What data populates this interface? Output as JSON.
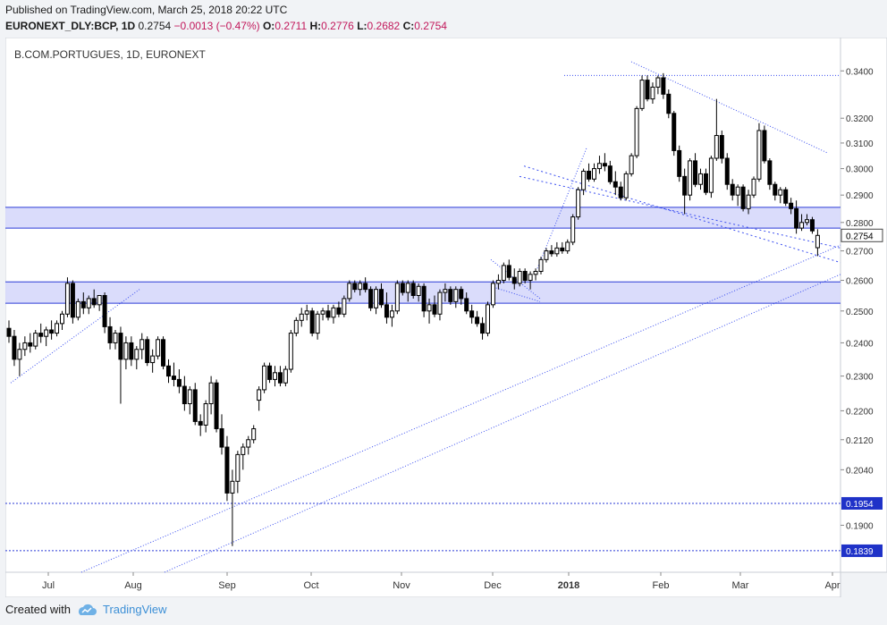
{
  "header": {
    "published": "Published on TradingView.com, March 25, 2018 20:22 UTC",
    "symbol": "EURONEXT_DLY:BCP, 1D",
    "last": "0.2754",
    "change": "−0.0013 (−0.47%)",
    "o_label": "O:",
    "o_value": "0.2711",
    "h_label": "H:",
    "h_value": "0.2776",
    "l_label": "L:",
    "l_value": "0.2682",
    "c_label": "C:",
    "c_value": "0.2754"
  },
  "footer": {
    "created_with": "Created with",
    "brand": "TradingView",
    "logo_icon": "tradingview-cloud-icon"
  },
  "colors": {
    "band_fill": "#d6d8fb",
    "band_border": "#2a3ad6",
    "trendline": "#3b4ff0",
    "candle": "#000000",
    "price_label_bg": "#1f32c8"
  },
  "chart_data": {
    "type": "candlestick",
    "title": "B.COM.PORTUGUES, 1D, EURONEXT",
    "y_axis_ticks": [
      "0.3400",
      "0.3200",
      "0.3100",
      "0.3000",
      "0.2900",
      "0.2800",
      "0.2700",
      "0.2600",
      "0.2500",
      "0.2400",
      "0.2300",
      "0.2200",
      "0.2120",
      "0.2040",
      "0.1900"
    ],
    "y_scale": "log",
    "ylim": [
      0.182,
      0.346
    ],
    "x_axis_labels": [
      "Jul",
      "Aug",
      "Sep",
      "Oct",
      "Nov",
      "Dec",
      "2018",
      "Feb",
      "Mar",
      "Apr"
    ],
    "last_price_label": "0.2754",
    "horizontal_levels": [
      {
        "value": 0.1954,
        "label": "0.1954"
      },
      {
        "value": 0.1839,
        "label": "0.1839"
      }
    ],
    "zones": [
      {
        "top": 0.2855,
        "bottom": 0.278
      },
      {
        "top": 0.2595,
        "bottom": 0.2525
      }
    ],
    "candles": [
      [
        0.2445,
        0.247,
        0.24,
        0.242
      ],
      [
        0.242,
        0.244,
        0.233,
        0.235
      ],
      [
        0.235,
        0.24,
        0.23,
        0.238
      ],
      [
        0.238,
        0.242,
        0.236,
        0.24
      ],
      [
        0.24,
        0.243,
        0.237,
        0.239
      ],
      [
        0.239,
        0.244,
        0.238,
        0.243
      ],
      [
        0.243,
        0.246,
        0.24,
        0.242
      ],
      [
        0.242,
        0.245,
        0.239,
        0.244
      ],
      [
        0.244,
        0.247,
        0.241,
        0.243
      ],
      [
        0.243,
        0.247,
        0.242,
        0.246
      ],
      [
        0.246,
        0.25,
        0.244,
        0.249
      ],
      [
        0.249,
        0.261,
        0.248,
        0.259
      ],
      [
        0.259,
        0.26,
        0.246,
        0.248
      ],
      [
        0.248,
        0.254,
        0.247,
        0.253
      ],
      [
        0.253,
        0.256,
        0.249,
        0.251
      ],
      [
        0.251,
        0.255,
        0.249,
        0.254
      ],
      [
        0.254,
        0.257,
        0.251,
        0.252
      ],
      [
        0.252,
        0.255,
        0.25,
        0.255
      ],
      [
        0.255,
        0.256,
        0.243,
        0.245
      ],
      [
        0.245,
        0.248,
        0.238,
        0.24
      ],
      [
        0.24,
        0.244,
        0.238,
        0.243
      ],
      [
        0.243,
        0.245,
        0.222,
        0.235
      ],
      [
        0.235,
        0.242,
        0.232,
        0.24
      ],
      [
        0.24,
        0.242,
        0.233,
        0.235
      ],
      [
        0.235,
        0.239,
        0.232,
        0.238
      ],
      [
        0.238,
        0.243,
        0.235,
        0.241
      ],
      [
        0.241,
        0.242,
        0.233,
        0.234
      ],
      [
        0.234,
        0.238,
        0.231,
        0.236
      ],
      [
        0.236,
        0.242,
        0.235,
        0.241
      ],
      [
        0.241,
        0.242,
        0.232,
        0.233
      ],
      [
        0.233,
        0.235,
        0.228,
        0.23
      ],
      [
        0.23,
        0.234,
        0.227,
        0.229
      ],
      [
        0.229,
        0.232,
        0.225,
        0.227
      ],
      [
        0.227,
        0.23,
        0.22,
        0.222
      ],
      [
        0.222,
        0.227,
        0.219,
        0.226
      ],
      [
        0.226,
        0.228,
        0.216,
        0.217
      ],
      [
        0.217,
        0.219,
        0.213,
        0.216
      ],
      [
        0.216,
        0.223,
        0.214,
        0.222
      ],
      [
        0.222,
        0.23,
        0.219,
        0.228
      ],
      [
        0.228,
        0.229,
        0.214,
        0.215
      ],
      [
        0.215,
        0.219,
        0.208,
        0.21
      ],
      [
        0.21,
        0.213,
        0.196,
        0.198
      ],
      [
        0.198,
        0.204,
        0.185,
        0.201
      ],
      [
        0.201,
        0.209,
        0.198,
        0.208
      ],
      [
        0.208,
        0.211,
        0.204,
        0.21
      ],
      [
        0.21,
        0.213,
        0.208,
        0.212
      ],
      [
        0.212,
        0.216,
        0.211,
        0.215
      ],
      [
        0.223,
        0.227,
        0.22,
        0.226
      ],
      [
        0.226,
        0.234,
        0.225,
        0.233
      ],
      [
        0.233,
        0.234,
        0.228,
        0.229
      ],
      [
        0.229,
        0.233,
        0.227,
        0.231
      ],
      [
        0.231,
        0.233,
        0.227,
        0.228
      ],
      [
        0.228,
        0.233,
        0.227,
        0.232
      ],
      [
        0.232,
        0.244,
        0.231,
        0.243
      ],
      [
        0.243,
        0.248,
        0.242,
        0.247
      ],
      [
        0.247,
        0.251,
        0.245,
        0.249
      ],
      [
        0.249,
        0.252,
        0.247,
        0.25
      ],
      [
        0.25,
        0.251,
        0.242,
        0.243
      ],
      [
        0.243,
        0.25,
        0.241,
        0.249
      ],
      [
        0.249,
        0.251,
        0.247,
        0.25
      ],
      [
        0.25,
        0.252,
        0.247,
        0.248
      ],
      [
        0.248,
        0.252,
        0.246,
        0.251
      ],
      [
        0.251,
        0.253,
        0.248,
        0.249
      ],
      [
        0.249,
        0.255,
        0.248,
        0.254
      ],
      [
        0.254,
        0.26,
        0.253,
        0.259
      ],
      [
        0.259,
        0.26,
        0.256,
        0.257
      ],
      [
        0.257,
        0.26,
        0.255,
        0.259
      ],
      [
        0.259,
        0.261,
        0.256,
        0.257
      ],
      [
        0.257,
        0.258,
        0.25,
        0.251
      ],
      [
        0.251,
        0.258,
        0.249,
        0.257
      ],
      [
        0.257,
        0.259,
        0.251,
        0.252
      ],
      [
        0.252,
        0.256,
        0.246,
        0.248
      ],
      [
        0.248,
        0.252,
        0.245,
        0.25
      ],
      [
        0.25,
        0.26,
        0.249,
        0.259
      ],
      [
        0.259,
        0.26,
        0.255,
        0.256
      ],
      [
        0.256,
        0.26,
        0.253,
        0.259
      ],
      [
        0.259,
        0.26,
        0.254,
        0.255
      ],
      [
        0.255,
        0.259,
        0.253,
        0.258
      ],
      [
        0.258,
        0.259,
        0.248,
        0.25
      ],
      [
        0.25,
        0.254,
        0.246,
        0.252
      ],
      [
        0.252,
        0.255,
        0.248,
        0.249
      ],
      [
        0.249,
        0.257,
        0.247,
        0.256
      ],
      [
        0.256,
        0.259,
        0.253,
        0.257
      ],
      [
        0.257,
        0.258,
        0.252,
        0.253
      ],
      [
        0.253,
        0.258,
        0.251,
        0.257
      ],
      [
        0.257,
        0.258,
        0.252,
        0.254
      ],
      [
        0.254,
        0.256,
        0.249,
        0.25
      ],
      [
        0.25,
        0.252,
        0.246,
        0.248
      ],
      [
        0.248,
        0.25,
        0.245,
        0.246
      ],
      [
        0.246,
        0.248,
        0.241,
        0.243
      ],
      [
        0.243,
        0.253,
        0.242,
        0.252
      ],
      [
        0.252,
        0.26,
        0.251,
        0.259
      ],
      [
        0.259,
        0.262,
        0.257,
        0.26
      ],
      [
        0.26,
        0.266,
        0.259,
        0.265
      ],
      [
        0.265,
        0.267,
        0.26,
        0.261
      ],
      [
        0.261,
        0.264,
        0.257,
        0.259
      ],
      [
        0.259,
        0.264,
        0.258,
        0.263
      ],
      [
        0.263,
        0.264,
        0.259,
        0.26
      ],
      [
        0.26,
        0.263,
        0.257,
        0.262
      ],
      [
        0.262,
        0.264,
        0.26,
        0.263
      ],
      [
        0.263,
        0.268,
        0.262,
        0.267
      ],
      [
        0.267,
        0.271,
        0.266,
        0.27
      ],
      [
        0.27,
        0.272,
        0.268,
        0.269
      ],
      [
        0.269,
        0.273,
        0.268,
        0.271
      ],
      [
        0.271,
        0.273,
        0.269,
        0.27
      ],
      [
        0.27,
        0.274,
        0.269,
        0.273
      ],
      [
        0.273,
        0.283,
        0.272,
        0.282
      ],
      [
        0.282,
        0.293,
        0.281,
        0.292
      ],
      [
        0.292,
        0.3,
        0.29,
        0.299
      ],
      [
        0.299,
        0.302,
        0.295,
        0.296
      ],
      [
        0.296,
        0.302,
        0.295,
        0.3
      ],
      [
        0.3,
        0.305,
        0.298,
        0.302
      ],
      [
        0.302,
        0.306,
        0.299,
        0.301
      ],
      [
        0.301,
        0.303,
        0.294,
        0.295
      ],
      [
        0.295,
        0.299,
        0.29,
        0.293
      ],
      [
        0.293,
        0.295,
        0.288,
        0.289
      ],
      [
        0.289,
        0.299,
        0.288,
        0.298
      ],
      [
        0.298,
        0.306,
        0.297,
        0.305
      ],
      [
        0.305,
        0.325,
        0.304,
        0.324
      ],
      [
        0.324,
        0.338,
        0.323,
        0.336
      ],
      [
        0.336,
        0.338,
        0.327,
        0.328
      ],
      [
        0.328,
        0.335,
        0.326,
        0.333
      ],
      [
        0.333,
        0.338,
        0.33,
        0.337
      ],
      [
        0.337,
        0.339,
        0.328,
        0.33
      ],
      [
        0.33,
        0.332,
        0.32,
        0.322
      ],
      [
        0.322,
        0.323,
        0.305,
        0.307
      ],
      [
        0.307,
        0.309,
        0.295,
        0.297
      ],
      [
        0.297,
        0.3,
        0.283,
        0.29
      ],
      [
        0.29,
        0.304,
        0.288,
        0.303
      ],
      [
        0.303,
        0.306,
        0.293,
        0.294
      ],
      [
        0.294,
        0.3,
        0.292,
        0.298
      ],
      [
        0.298,
        0.3,
        0.29,
        0.291
      ],
      [
        0.291,
        0.305,
        0.289,
        0.304
      ],
      [
        0.304,
        0.328,
        0.303,
        0.313
      ],
      [
        0.313,
        0.315,
        0.302,
        0.304
      ],
      [
        0.304,
        0.306,
        0.292,
        0.294
      ],
      [
        0.294,
        0.296,
        0.288,
        0.29
      ],
      [
        0.29,
        0.294,
        0.286,
        0.293
      ],
      [
        0.293,
        0.294,
        0.284,
        0.285
      ],
      [
        0.285,
        0.292,
        0.283,
        0.29
      ],
      [
        0.29,
        0.297,
        0.289,
        0.296
      ],
      [
        0.296,
        0.318,
        0.295,
        0.315
      ],
      [
        0.315,
        0.317,
        0.302,
        0.303
      ],
      [
        0.303,
        0.304,
        0.292,
        0.294
      ],
      [
        0.294,
        0.295,
        0.288,
        0.29
      ],
      [
        0.29,
        0.293,
        0.287,
        0.292
      ],
      [
        0.292,
        0.293,
        0.286,
        0.287
      ],
      [
        0.287,
        0.289,
        0.283,
        0.285
      ],
      [
        0.285,
        0.288,
        0.276,
        0.278
      ],
      [
        0.278,
        0.283,
        0.277,
        0.28
      ],
      [
        0.28,
        0.283,
        0.279,
        0.281
      ],
      [
        0.281,
        0.282,
        0.276,
        0.277
      ],
      [
        0.2711,
        0.2776,
        0.2682,
        0.2754
      ]
    ],
    "trendlines": [
      {
        "style": "dotted",
        "points": [
          [
            0.228,
            0
          ],
          [
            0.257,
            0
          ]
        ]
      },
      {
        "style": "dotted",
        "note": "channel"
      }
    ]
  }
}
